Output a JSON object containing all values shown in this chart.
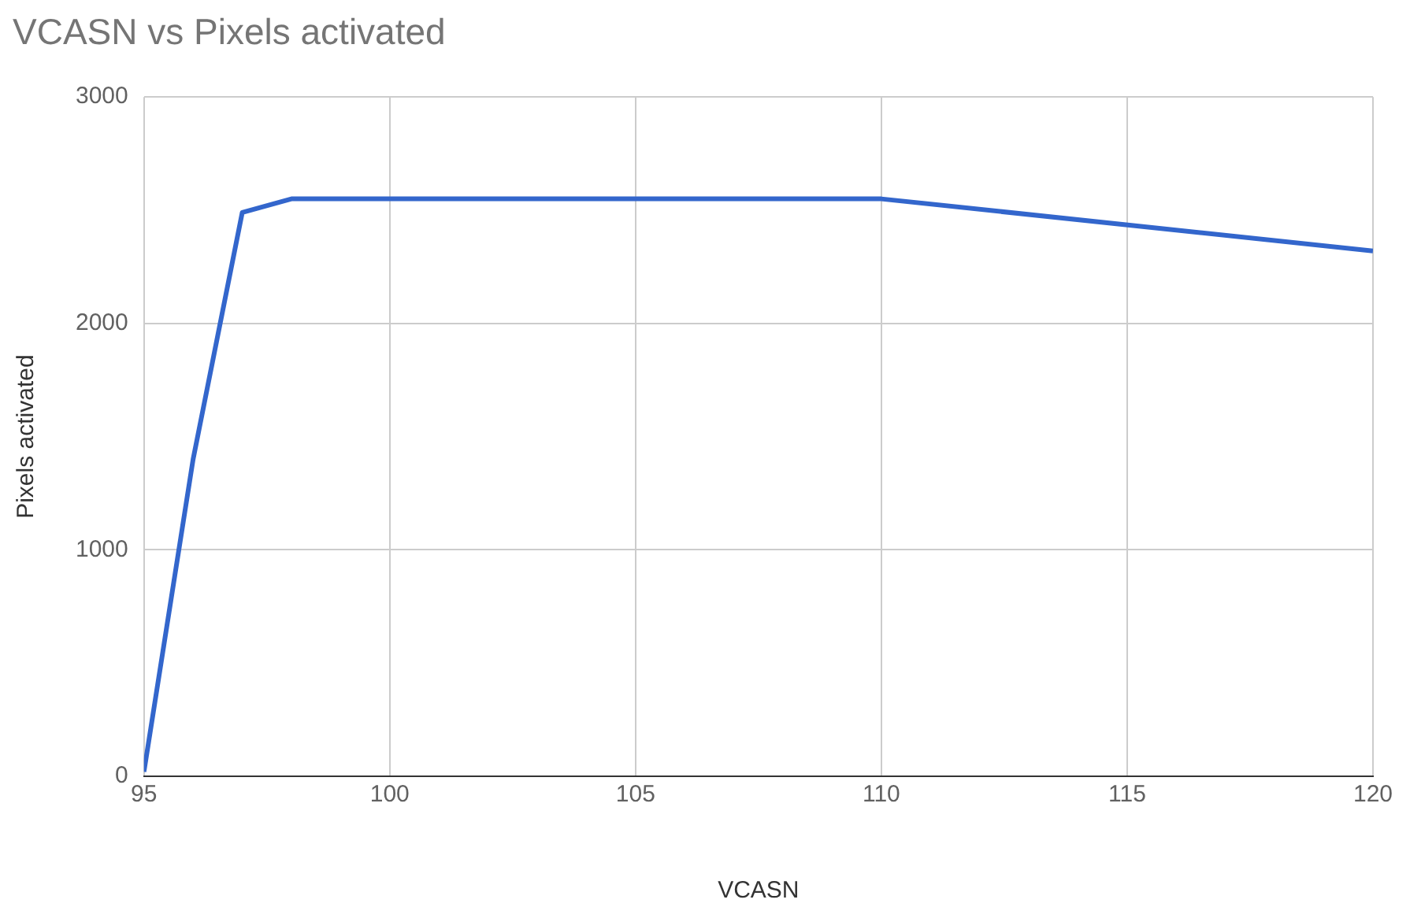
{
  "chart_data": {
    "type": "line",
    "title": "VCASN vs Pixels activated",
    "xlabel": "VCASN",
    "ylabel": "Pixels activated",
    "x": [
      95,
      96,
      97,
      98,
      110,
      120
    ],
    "series": [
      {
        "color": "#3366cc",
        "values": [
          20,
          1400,
          2490,
          2550,
          2550,
          2320
        ]
      }
    ],
    "xlim": [
      95,
      120
    ],
    "xticks": [
      95,
      100,
      105,
      110,
      115,
      120
    ],
    "ylim": [
      0,
      3000
    ],
    "yticks": [
      0,
      1000,
      2000,
      3000
    ],
    "grid": true,
    "legend": false,
    "marker": "none",
    "line_style": "solid"
  }
}
